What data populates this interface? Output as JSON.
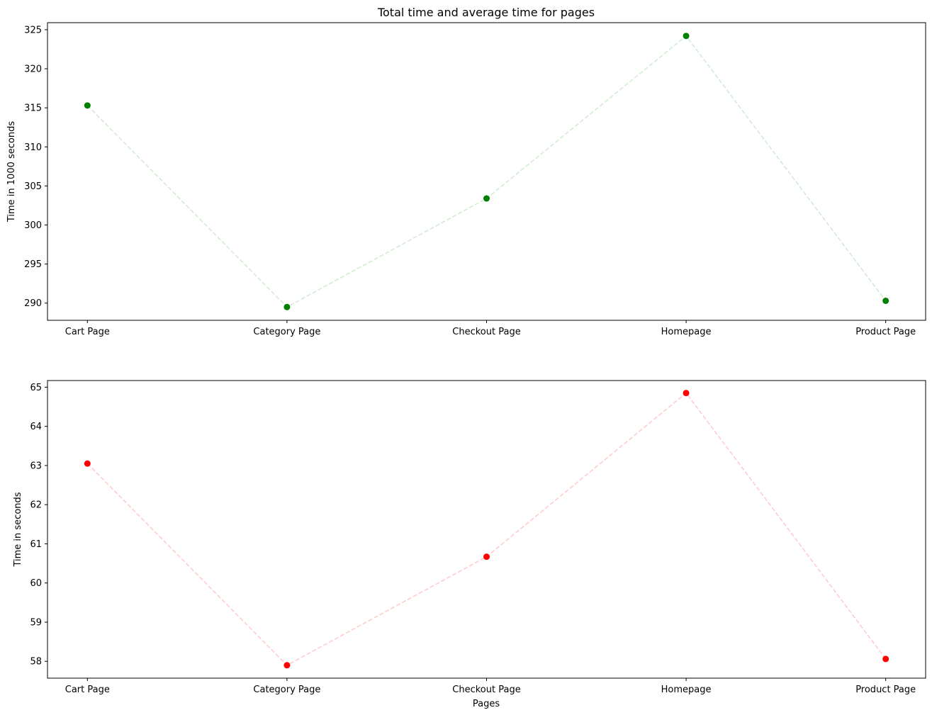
{
  "chart_data": [
    {
      "type": "line",
      "title": "Total time and average time for pages",
      "xlabel": "",
      "ylabel": "Time in 1000 seconds",
      "categories": [
        "Cart Page",
        "Category Page",
        "Checkout Page",
        "Homepage",
        "Product Page"
      ],
      "series": [
        {
          "values": [
            315.3,
            289.5,
            303.4,
            324.2,
            290.3
          ],
          "color": "#008000",
          "line_color": "#d2ecd2",
          "line_style": "dashed",
          "marker": "circle"
        }
      ],
      "ylim": [
        287.8,
        325.9
      ],
      "yticks": [
        290,
        295,
        300,
        305,
        310,
        315,
        320,
        325
      ],
      "grid": false,
      "legend": false
    },
    {
      "type": "line",
      "title": "",
      "xlabel": "Pages",
      "ylabel": "Time in seconds",
      "categories": [
        "Cart Page",
        "Category Page",
        "Checkout Page",
        "Homepage",
        "Product Page"
      ],
      "series": [
        {
          "values": [
            63.05,
            57.9,
            60.67,
            64.85,
            58.06
          ],
          "color": "#ff0000",
          "line_color": "#ffcccc",
          "line_style": "dashed",
          "marker": "circle"
        }
      ],
      "ylim": [
        57.57,
        65.17
      ],
      "yticks": [
        58,
        59,
        60,
        61,
        62,
        63,
        64,
        65
      ],
      "grid": false,
      "legend": false
    }
  ]
}
